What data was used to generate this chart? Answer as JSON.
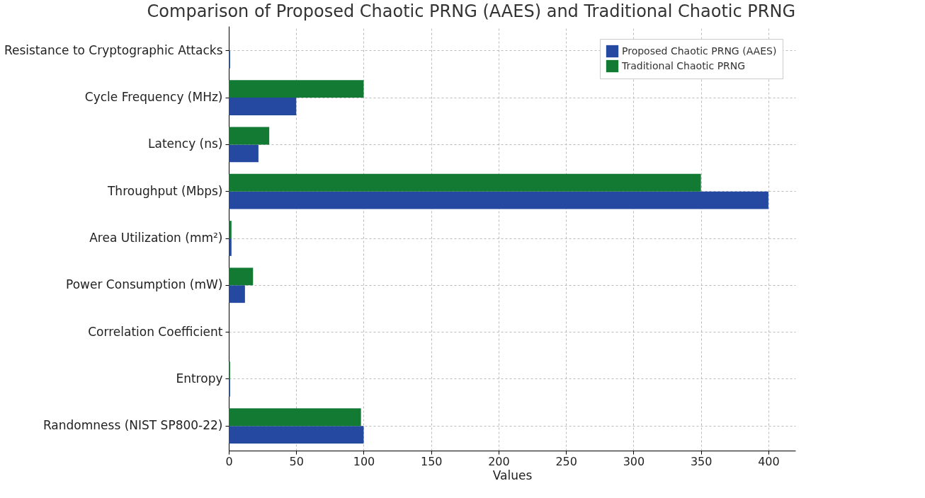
{
  "chart_data": {
    "type": "bar",
    "orientation": "horizontal",
    "title": "Comparison of Proposed Chaotic PRNG (AAES) and Traditional Chaotic PRNG",
    "xlabel": "Values",
    "categories": [
      "Resistance to Cryptographic Attacks",
      "Cycle Frequency (MHz)",
      "Latency (ns)",
      "Throughput (Mbps)",
      "Area Utilization (mm²)",
      "Power Consumption (mW)",
      "Correlation Coefficient",
      "Entropy",
      "Randomness (NIST SP800-22)"
    ],
    "series": [
      {
        "name": "Proposed Chaotic PRNG (AAES)",
        "color": "#2548a0",
        "values": [
          1,
          50,
          22,
          400,
          2,
          12,
          0,
          1,
          100
        ]
      },
      {
        "name": "Traditional Chaotic PRNG",
        "color": "#137a34",
        "values": [
          0,
          100,
          30,
          350,
          2,
          18,
          0,
          1,
          98
        ]
      }
    ],
    "xlim": [
      0,
      420
    ],
    "xticks": [
      0,
      50,
      100,
      150,
      200,
      250,
      300,
      350,
      400
    ],
    "grid": true,
    "legend": "top right"
  }
}
